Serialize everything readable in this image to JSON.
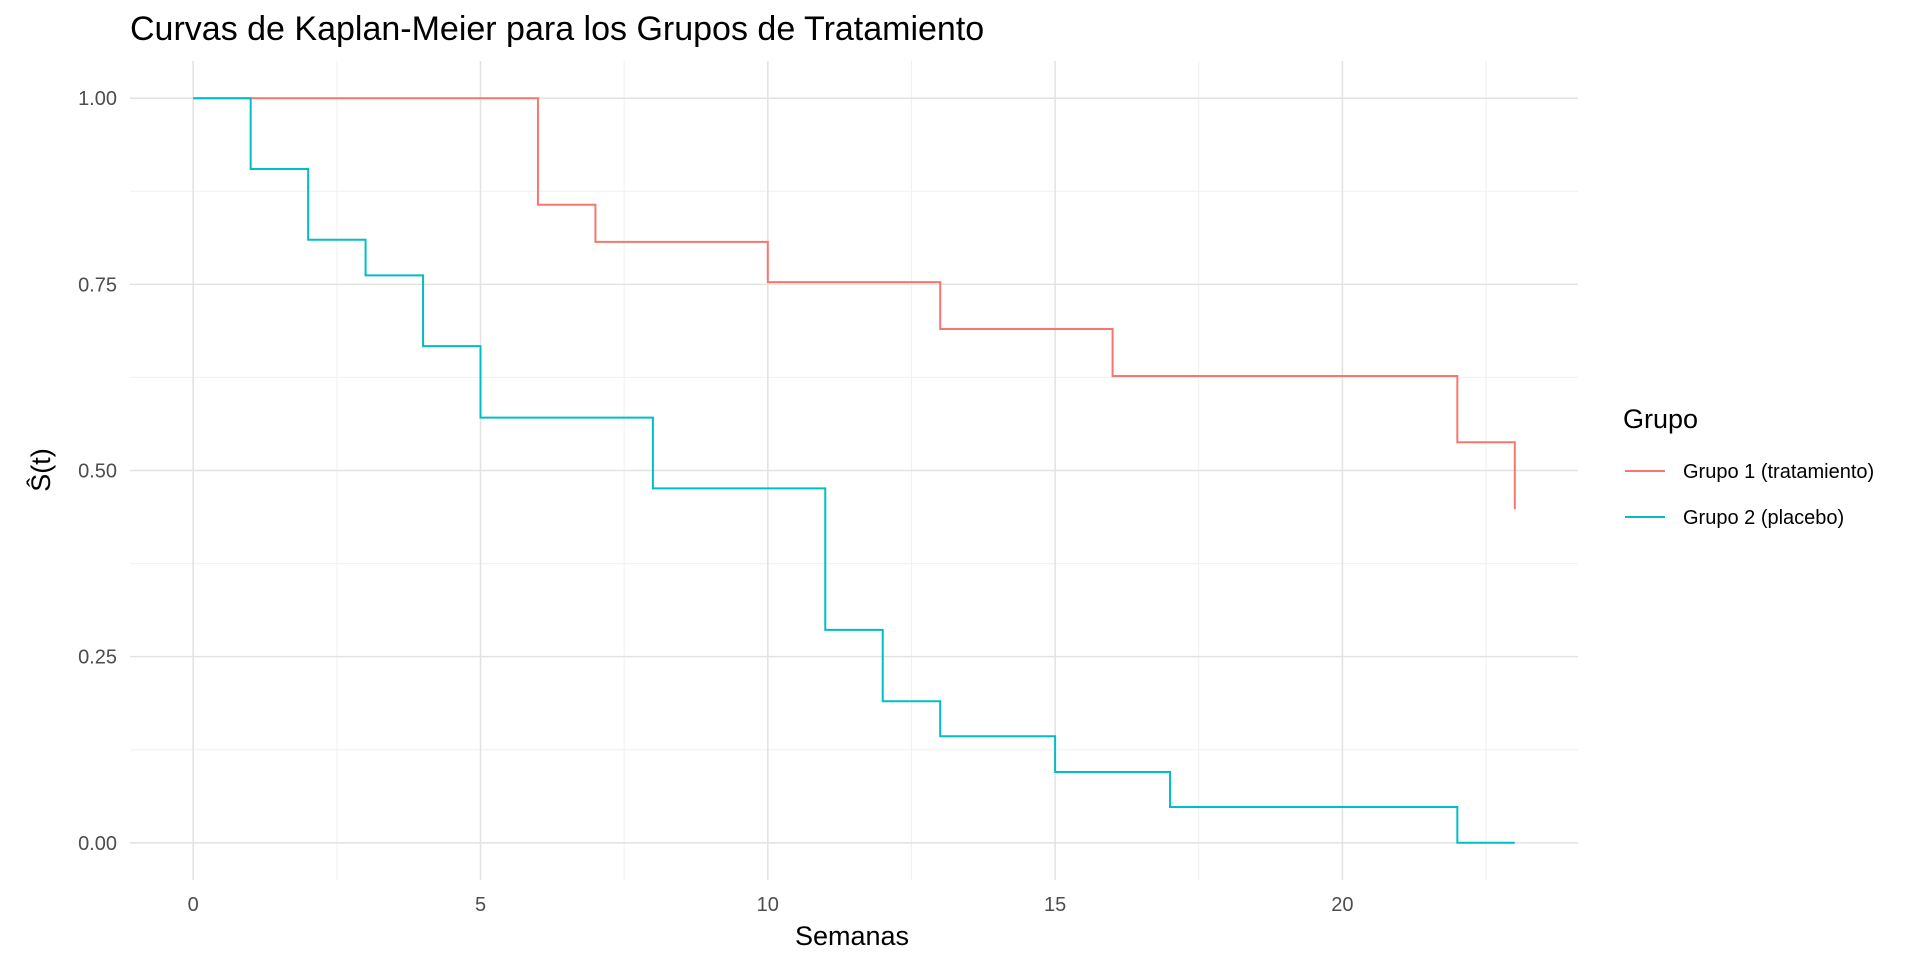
{
  "chart_data": {
    "type": "line",
    "step": "post",
    "title": "Curvas de Kaplan-Meier para los Grupos de Tratamiento",
    "xlabel": "Semanas",
    "ylabel": "Ŝ(t)",
    "xlim": [
      -1.1,
      24.1
    ],
    "ylim": [
      -0.05,
      1.05
    ],
    "x_ticks": [
      0,
      5,
      10,
      15,
      20
    ],
    "x_tick_labels": [
      "0",
      "5",
      "10",
      "15",
      "20"
    ],
    "y_ticks": [
      0,
      0.25,
      0.5,
      0.75,
      1
    ],
    "y_tick_labels": [
      "0.00",
      "0.25",
      "0.50",
      "0.75",
      "1.00"
    ],
    "grid": true,
    "legend": {
      "title": "Grupo",
      "position": "right"
    },
    "series": [
      {
        "name": "Grupo 1 (tratamiento)",
        "color": "#F8766D",
        "x": [
          0,
          6,
          7,
          10,
          13,
          16,
          22,
          23
        ],
        "y": [
          1.0,
          0.857,
          0.807,
          0.753,
          0.69,
          0.627,
          0.538,
          0.448
        ]
      },
      {
        "name": "Grupo 2 (placebo)",
        "color": "#00BFC4",
        "x": [
          0,
          1,
          2,
          3,
          4,
          5,
          8,
          11,
          12,
          13,
          15,
          17,
          22,
          23
        ],
        "y": [
          1.0,
          0.905,
          0.81,
          0.762,
          0.667,
          0.571,
          0.476,
          0.286,
          0.19,
          0.143,
          0.095,
          0.048,
          0.0,
          0.0
        ]
      }
    ]
  }
}
